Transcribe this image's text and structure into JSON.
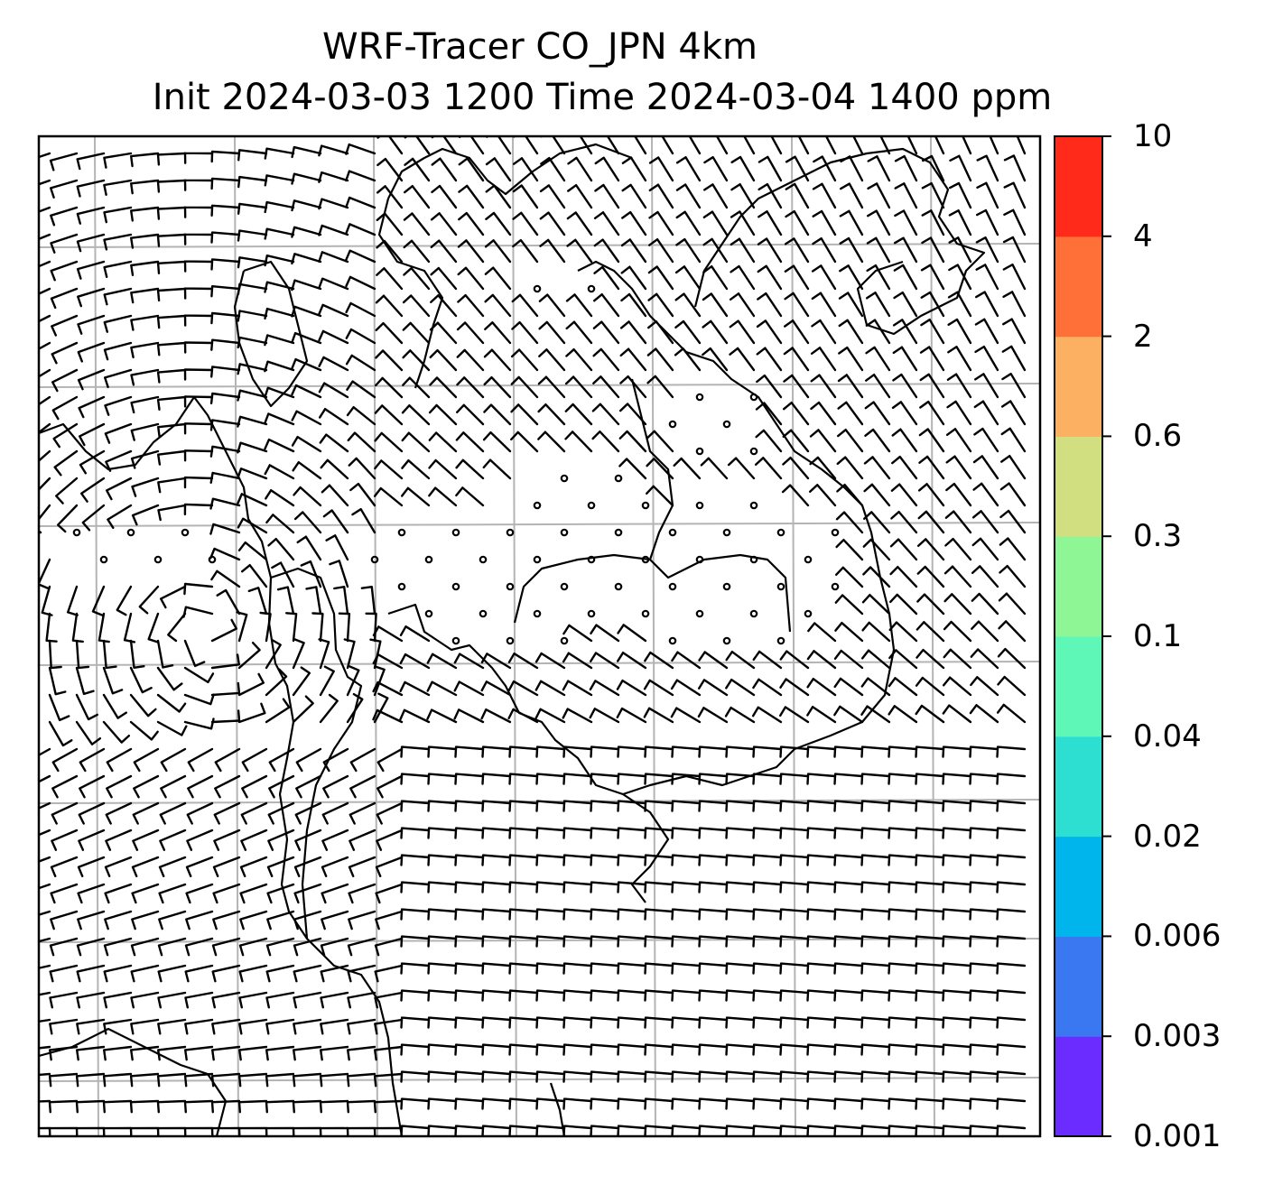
{
  "title": {
    "line1": "WRF-Tracer CO_JPN 4km",
    "line2": "Init 2024-03-03 1200 Time 2024-03-04 1400 ppm"
  },
  "colorbar": {
    "levels": [
      "0.001",
      "0.003",
      "0.006",
      "0.02",
      "0.04",
      "0.1",
      "0.3",
      "0.6",
      "2",
      "4",
      "10"
    ],
    "colors": [
      "#6a2cff",
      "#3a78f2",
      "#00b4ec",
      "#2ddfd1",
      "#5ef7b8",
      "#8ef695",
      "#d2df80",
      "#fcb062",
      "#ff7039",
      "#ff2a1a"
    ]
  },
  "map": {
    "gridlines": "on",
    "coastline_color": "#000000",
    "grid_color": "#b4b4b4",
    "symbol": "wind barbs"
  }
}
